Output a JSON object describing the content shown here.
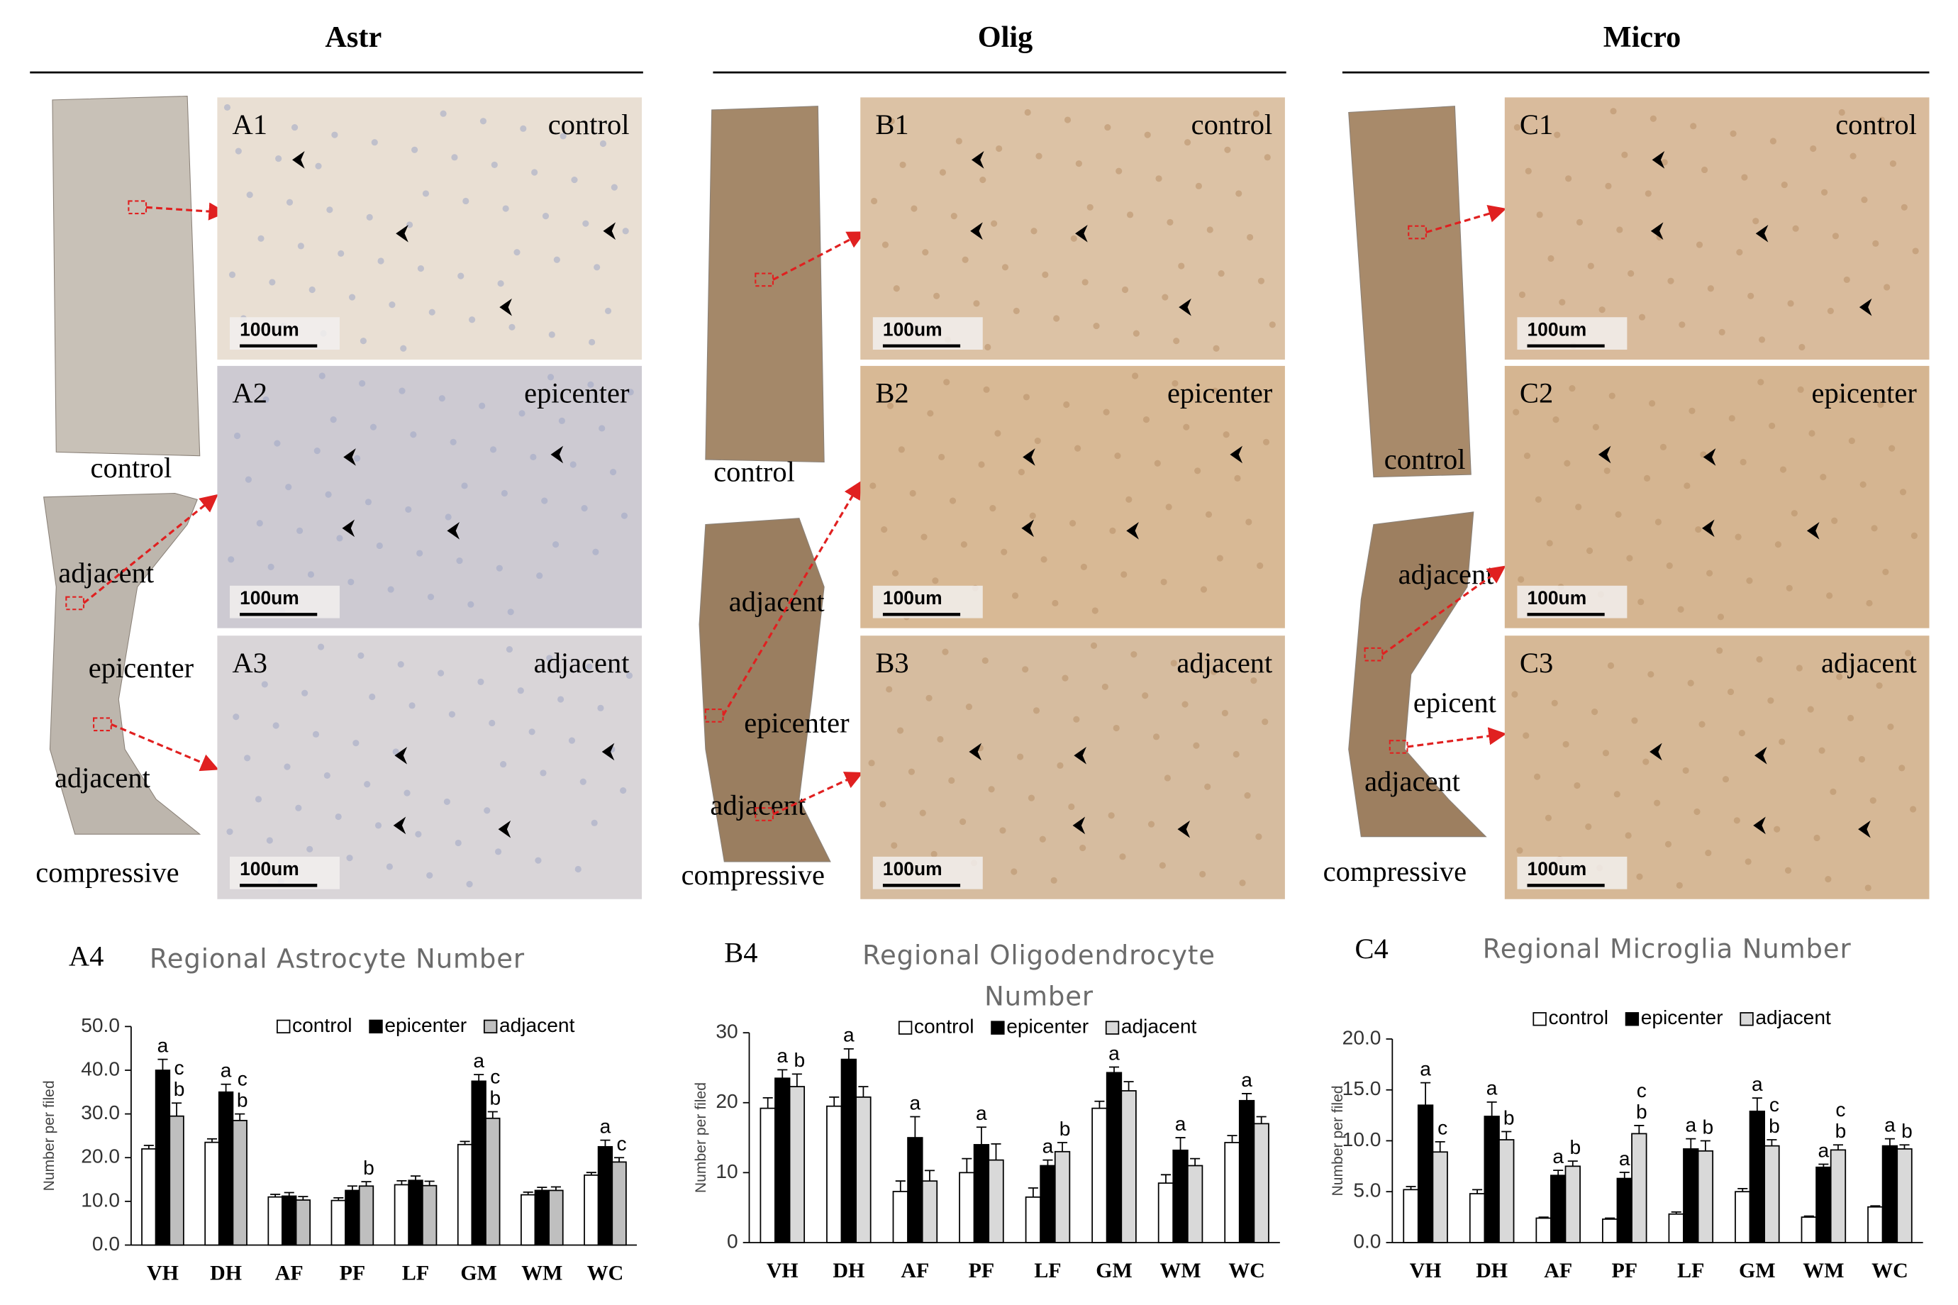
{
  "figure": {
    "columns": [
      {
        "title": "Astr",
        "overview_labels": [
          "control",
          "adjacent",
          "epicenter",
          "adjacent",
          "compressive"
        ],
        "panels": [
          {
            "id": "A1",
            "label": "control",
            "scale": "100um"
          },
          {
            "id": "A2",
            "label": "epicenter",
            "scale": "100um"
          },
          {
            "id": "A3",
            "label": "adjacent",
            "scale": "100um"
          }
        ]
      },
      {
        "title": "Olig",
        "overview_labels": [
          "control",
          "adjacent",
          "epicenter",
          "adjacent",
          "compressive"
        ],
        "panels": [
          {
            "id": "B1",
            "label": "control",
            "scale": "100um"
          },
          {
            "id": "B2",
            "label": "epicenter",
            "scale": "100um"
          },
          {
            "id": "B3",
            "label": "adjacent",
            "scale": "100um"
          }
        ]
      },
      {
        "title": "Micro",
        "overview_labels": [
          "control",
          "adjacent",
          "epicent",
          "adjacent",
          "compressive"
        ],
        "panels": [
          {
            "id": "C1",
            "label": "control",
            "scale": "100um"
          },
          {
            "id": "C2",
            "label": "epicenter",
            "scale": "100um"
          },
          {
            "id": "C3",
            "label": "adjacent",
            "scale": "100um"
          }
        ]
      }
    ]
  },
  "chart_data": [
    {
      "type": "bar",
      "label": "A4",
      "title": "Regional  Astrocyte Number",
      "y_label": "Number per filed",
      "categories": [
        "VH",
        "DH",
        "AF",
        "PF",
        "LF",
        "GM",
        "WM",
        "WC"
      ],
      "ylim": [
        0,
        50
      ],
      "yticks": [
        {
          "value": 0,
          "label": "0.0"
        },
        {
          "value": 10,
          "label": "10.0"
        },
        {
          "value": 20,
          "label": "20.0"
        },
        {
          "value": 30,
          "label": "30.0"
        },
        {
          "value": 40,
          "label": "40.0"
        },
        {
          "value": 50,
          "label": "50.0"
        }
      ],
      "series": [
        {
          "name": "control",
          "color": "#ffffff",
          "values": [
            22,
            23.5,
            11,
            10.2,
            13.8,
            23,
            11.5,
            16
          ],
          "errors": [
            0.8,
            0.8,
            0.6,
            0.6,
            0.9,
            0.7,
            0.6,
            0.6
          ],
          "letters": [
            null,
            null,
            null,
            null,
            null,
            null,
            null,
            null
          ]
        },
        {
          "name": "epicenter",
          "color": "#000000",
          "values": [
            40,
            35,
            11.2,
            12.5,
            14.8,
            37.5,
            12.5,
            22.5
          ],
          "errors": [
            2.5,
            1.8,
            0.8,
            1,
            1,
            1.5,
            0.7,
            1.5
          ],
          "letters": [
            [
              "a"
            ],
            [
              "a"
            ],
            null,
            null,
            null,
            [
              "a"
            ],
            null,
            [
              "a"
            ]
          ]
        },
        {
          "name": "adjacent",
          "color": "#bfbfbf",
          "values": [
            29.5,
            28.5,
            10.3,
            13.5,
            13.6,
            29,
            12.5,
            19
          ],
          "errors": [
            3,
            1.5,
            0.8,
            1,
            1,
            1.5,
            0.8,
            1
          ],
          "letters": [
            [
              "c",
              "b"
            ],
            [
              "c",
              "b"
            ],
            null,
            [
              "b"
            ],
            null,
            [
              "c",
              "b"
            ],
            null,
            [
              "c"
            ]
          ]
        }
      ]
    },
    {
      "type": "bar",
      "label": "B4",
      "title": "Regional  Oligodendrocyte Number",
      "y_label": "Number per filed",
      "categories": [
        "VH",
        "DH",
        "AF",
        "PF",
        "LF",
        "GM",
        "WM",
        "WC"
      ],
      "ylim": [
        0,
        30
      ],
      "yticks": [
        0,
        10,
        20,
        30
      ],
      "series": [
        {
          "name": "control",
          "color": "#ffffff",
          "values": [
            19.2,
            19.5,
            7.3,
            10,
            6.5,
            19.2,
            8.5,
            14.3
          ],
          "errors": [
            1.5,
            1.3,
            1.5,
            2,
            1.3,
            1,
            1.2,
            1
          ],
          "letters": [
            null,
            null,
            null,
            null,
            null,
            null,
            null,
            null
          ]
        },
        {
          "name": "epicenter",
          "color": "#000000",
          "values": [
            23.5,
            26.2,
            15,
            14,
            11,
            24.3,
            13.2,
            20.3
          ],
          "errors": [
            1.2,
            1.5,
            3,
            2.5,
            0.8,
            0.8,
            1.8,
            1
          ],
          "letters": [
            [
              "a"
            ],
            [
              "a"
            ],
            [
              "a"
            ],
            [
              "a"
            ],
            [
              "a"
            ],
            [
              "a"
            ],
            [
              "a"
            ],
            [
              "a"
            ]
          ]
        },
        {
          "name": "adjacent",
          "color": "#d9d9d9",
          "values": [
            22.3,
            20.8,
            8.8,
            11.8,
            13,
            21.7,
            11,
            17
          ],
          "errors": [
            1.8,
            1.5,
            1.5,
            2.3,
            1.3,
            1.3,
            1,
            1
          ],
          "letters": [
            [
              "b"
            ],
            null,
            null,
            null,
            [
              "b"
            ],
            null,
            null,
            null
          ]
        }
      ]
    },
    {
      "type": "bar",
      "label": "C4",
      "title": "Regional  Microglia Number",
      "y_label": "Number per filed",
      "categories": [
        "VH",
        "DH",
        "AF",
        "PF",
        "LF",
        "GM",
        "WM",
        "WC"
      ],
      "ylim": [
        0,
        20
      ],
      "yticks": [
        {
          "value": 0,
          "label": "0.0"
        },
        {
          "value": 5,
          "label": "5.0"
        },
        {
          "value": 10,
          "label": "10.0"
        },
        {
          "value": 15,
          "label": "15.0"
        },
        {
          "value": 20,
          "label": "20.0"
        }
      ],
      "series": [
        {
          "name": "control",
          "color": "#ffffff",
          "values": [
            5.2,
            4.8,
            2.4,
            2.3,
            2.8,
            5,
            2.5,
            3.5
          ],
          "errors": [
            0.3,
            0.4,
            0.1,
            0.1,
            0.2,
            0.3,
            0.1,
            0.1
          ],
          "letters": [
            null,
            null,
            null,
            null,
            null,
            null,
            null,
            null
          ]
        },
        {
          "name": "epicenter",
          "color": "#000000",
          "values": [
            13.5,
            12.4,
            6.6,
            6.3,
            9.2,
            12.9,
            7.4,
            9.5
          ],
          "errors": [
            2.2,
            1.4,
            0.5,
            0.6,
            1,
            1.3,
            0.3,
            0.7
          ],
          "letters": [
            [
              "a"
            ],
            [
              "a"
            ],
            [
              "a"
            ],
            [
              "a"
            ],
            [
              "a"
            ],
            [
              "a"
            ],
            [
              "a"
            ],
            [
              "a"
            ]
          ]
        },
        {
          "name": "adjacent",
          "color": "#d9d9d9",
          "values": [
            8.9,
            10.1,
            7.5,
            10.7,
            9,
            9.5,
            9.1,
            9.2
          ],
          "errors": [
            1,
            0.8,
            0.5,
            0.8,
            1,
            0.6,
            0.5,
            0.4
          ],
          "letters": [
            [
              "c"
            ],
            [
              "b"
            ],
            [
              "b"
            ],
            [
              "c",
              "b"
            ],
            [
              "b"
            ],
            [
              "c",
              "b"
            ],
            [
              "c",
              "b"
            ],
            [
              "b"
            ]
          ]
        }
      ]
    }
  ]
}
